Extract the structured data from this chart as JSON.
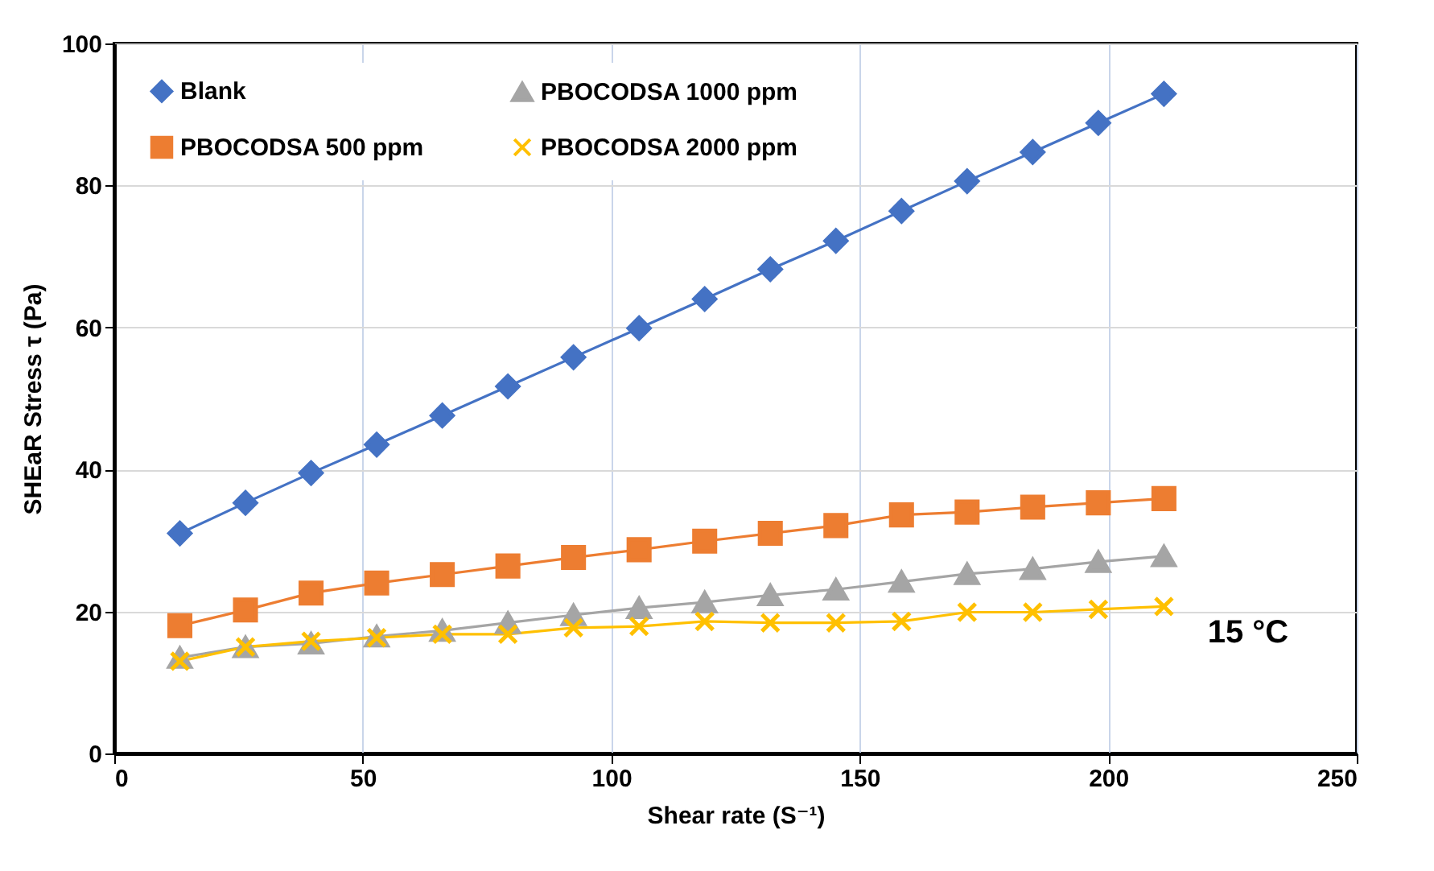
{
  "chart_data": {
    "type": "line",
    "xlabel": "Shear rate (S⁻¹)",
    "ylabel": "SHEaR Stress τ  (Pa)",
    "x": [
      13.2,
      26.4,
      39.6,
      52.8,
      66,
      79.2,
      92.4,
      105.6,
      118.8,
      132,
      145.2,
      158.4,
      171.6,
      184.8,
      198,
      211.2
    ],
    "series": [
      {
        "name": "Blank",
        "color": "#4472c4",
        "marker": "diamond",
        "values": [
          31,
          35.3,
          39.5,
          43.5,
          47.6,
          51.7,
          55.8,
          59.9,
          64,
          68.2,
          72.2,
          76.4,
          80.6,
          84.7,
          88.8,
          92.9
        ]
      },
      {
        "name": "PBOCODSA 500 ppm",
        "color": "#ed7d31",
        "marker": "square",
        "values": [
          18,
          20.2,
          22.6,
          24,
          25.2,
          26.4,
          27.6,
          28.7,
          29.9,
          31,
          32.1,
          33.6,
          34,
          34.7,
          35.3,
          35.9
        ]
      },
      {
        "name": "PBOCODSA 1000 ppm",
        "color": "#a5a5a5",
        "marker": "triangle",
        "values": [
          13.5,
          15,
          15.5,
          16.5,
          17.3,
          18.4,
          19.5,
          20.5,
          21.3,
          22.3,
          23.1,
          24.2,
          25.3,
          26,
          27,
          27.8
        ]
      },
      {
        "name": "PBOCODSA 2000 ppm",
        "color": "#ffc000",
        "marker": "cross",
        "values": [
          13,
          15,
          15.8,
          16.3,
          16.8,
          16.8,
          17.7,
          17.9,
          18.6,
          18.4,
          18.4,
          18.6,
          19.9,
          19.9,
          20.3,
          20.7
        ]
      }
    ],
    "xlim": [
      0,
      250
    ],
    "xticks": [
      0,
      50,
      100,
      150,
      200,
      250
    ],
    "ylim": [
      0,
      100
    ],
    "yticks": [
      0,
      20,
      40,
      60,
      80,
      100
    ],
    "grid": true,
    "legend": "top left",
    "annotations": [
      "15 °C"
    ]
  }
}
